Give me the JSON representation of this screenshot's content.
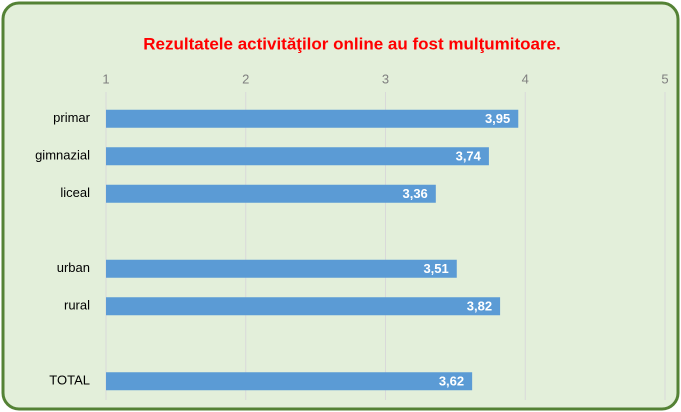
{
  "chart_data": {
    "type": "bar",
    "orientation": "horizontal",
    "title": "Rezultatele activităţilor online au fost mulţumitoare.",
    "categories": [
      "primar",
      "gimnazial",
      "liceal",
      null,
      "urban",
      "rural",
      null,
      "TOTAL"
    ],
    "values": [
      3.95,
      3.74,
      3.36,
      null,
      3.51,
      3.82,
      null,
      3.62
    ],
    "value_labels": [
      "3,95",
      "3,74",
      "3,36",
      null,
      "3,51",
      "3,82",
      null,
      "3,62"
    ],
    "color": "#5b9bd5",
    "xlim": [
      1,
      5
    ],
    "xticks": [
      1,
      2,
      3,
      4,
      5
    ],
    "grid": true
  }
}
